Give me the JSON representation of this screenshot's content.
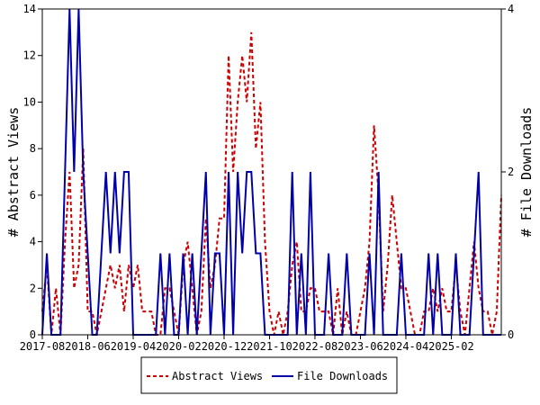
{
  "chart_data": {
    "type": "line",
    "xlabel": "",
    "y_left_label": "# Abstract Views",
    "y_right_label": "# File Downloads",
    "y_left_lim": [
      0,
      14
    ],
    "y_left_ticks": [
      0,
      2,
      4,
      6,
      8,
      10,
      12,
      14
    ],
    "y_right_lim": [
      0,
      4
    ],
    "y_right_ticks": [
      0,
      2,
      4
    ],
    "x_tick_labels": [
      "2017-08",
      "2018-06",
      "2019-04",
      "2020-02",
      "2020-12",
      "2021-10",
      "2022-08",
      "2023-06",
      "2024-04",
      "2025-02"
    ],
    "x_tick_step_months": 10,
    "x_range_months": 101,
    "legend_position": "bottom",
    "series": [
      {
        "name": "Abstract Views",
        "axis": "left",
        "color": "#cc0000",
        "dash": true,
        "values": [
          1,
          3,
          0,
          2,
          0,
          4,
          7,
          2,
          3,
          8,
          1,
          1,
          0,
          1,
          2,
          3,
          2,
          3,
          1,
          3,
          2,
          3,
          1,
          1,
          1,
          0,
          0,
          2,
          2,
          1,
          0,
          3,
          4,
          2,
          0,
          1,
          5,
          2,
          3,
          5,
          5,
          12,
          7,
          10,
          12,
          10,
          13,
          8,
          10,
          4,
          1,
          0,
          1,
          0,
          1,
          3,
          4,
          1,
          1,
          2,
          2,
          1,
          1,
          1,
          0,
          2,
          0,
          1,
          0,
          0,
          1,
          2,
          4,
          9,
          6,
          1,
          3,
          6,
          4,
          2,
          2,
          1,
          0,
          0,
          1,
          1,
          2,
          1,
          2,
          1,
          1,
          3,
          1,
          0,
          2,
          4,
          2,
          1,
          1,
          0,
          1,
          6
        ]
      },
      {
        "name": "File Downloads",
        "axis": "right",
        "color": "#0000aa",
        "dash": false,
        "values": [
          0,
          1,
          0,
          0,
          0,
          2,
          4,
          2,
          4,
          2,
          1,
          0,
          0,
          1,
          2,
          1,
          2,
          1,
          2,
          2,
          0,
          0,
          0,
          0,
          0,
          0,
          1,
          0,
          1,
          0,
          0,
          1,
          0,
          1,
          0,
          1,
          2,
          0,
          1,
          1,
          0,
          2,
          0,
          2,
          1,
          2,
          2,
          1,
          1,
          0,
          0,
          0,
          0,
          0,
          0,
          2,
          0,
          1,
          0,
          2,
          0,
          0,
          0,
          1,
          0,
          0,
          0,
          1,
          0,
          0,
          0,
          0,
          1,
          0,
          2,
          0,
          0,
          0,
          0,
          1,
          0,
          0,
          0,
          0,
          0,
          1,
          0,
          1,
          0,
          0,
          0,
          1,
          0,
          0,
          0,
          1,
          2,
          0,
          0,
          0,
          0,
          0
        ]
      }
    ]
  }
}
